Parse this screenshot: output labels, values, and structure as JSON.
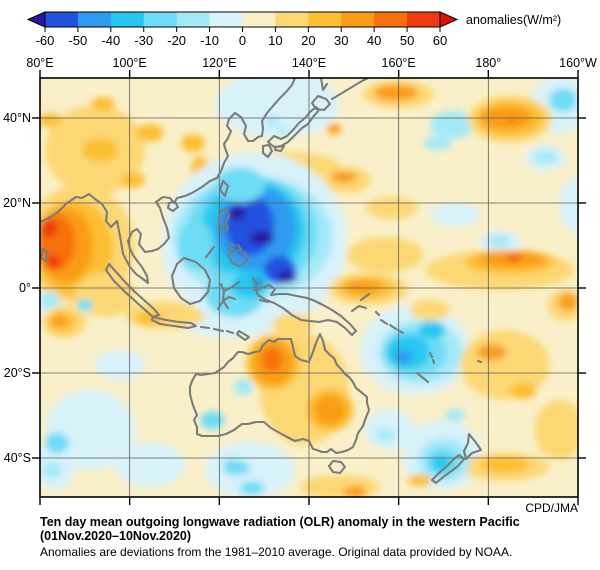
{
  "colorbar": {
    "labels": [
      "-60",
      "-50",
      "-40",
      "-30",
      "-20",
      "-10",
      "0",
      "10",
      "20",
      "30",
      "40",
      "50",
      "60"
    ],
    "unit": "anomalies(W/m²)",
    "under_color": "#2a16a0",
    "over_color": "#e01004",
    "segment_colors": [
      "#2351e0",
      "#2f9bf0",
      "#25c7f0",
      "#6edcf5",
      "#a4e9f8",
      "#d8f2fa",
      "#f9f0c9",
      "#fcd874",
      "#fcbe33",
      "#fb9c16",
      "#f8700c",
      "#ef3a10"
    ]
  },
  "axes": {
    "top_labels": [
      "80°E",
      "100°E",
      "120°E",
      "140°E",
      "160°E",
      "180°",
      "160°W"
    ],
    "left_labels": [
      "40°N",
      "20°N",
      "0°",
      "20°S",
      "40°S"
    ]
  },
  "caption": {
    "credit": "CPD/JMA",
    "title_line1": "Ten day mean outgoing longwave radiation (OLR) anomaly in the western Pacific",
    "title_line2": "(01Nov.2020–10Nov.2020)",
    "subtitle": "Anomalies are deviations from the 1981–2010 average. Original data provided by NOAA."
  },
  "chart_data": {
    "type": "heatmap",
    "title": "Ten day mean OLR anomaly in the western Pacific (01Nov.2020–10Nov.2020)",
    "units": "W/m²",
    "lon_range_deg_east": [
      80,
      200
    ],
    "lat_range": [
      -50,
      50
    ],
    "grid_step_deg": 20,
    "palette_thresholds": [
      -60,
      -50,
      -40,
      -30,
      -20,
      -10,
      0,
      10,
      20,
      30,
      40,
      50,
      60
    ],
    "palette_colors": [
      "#2a16a0",
      "#2351e0",
      "#2f9bf0",
      "#25c7f0",
      "#6edcf5",
      "#a4e9f8",
      "#d8f2fa",
      "#f9f0c9",
      "#fcd874",
      "#fcbe33",
      "#fb9c16",
      "#f8700c",
      "#ef3a10",
      "#e01004"
    ],
    "background_value": 5,
    "anomaly_regions": [
      [
        132.9,
        43.1,
        13.8,
        7.8,
        -5
      ],
      [
        196.0,
        43.1,
        6.7,
        6.6,
        -5
      ],
      [
        192.7,
        30.6,
        4.5,
        3.1,
        -5
      ],
      [
        199.3,
        19.5,
        3.6,
        6.1,
        -5
      ],
      [
        182.6,
        10.8,
        4.5,
        2.6,
        -5
      ],
      [
        112.3,
        7.8,
        4.9,
        8.9,
        -5
      ],
      [
        122.4,
        -6.4,
        12.3,
        5.2,
        -5
      ],
      [
        91.2,
        -33.4,
        10.0,
        9.4,
        -5
      ],
      [
        104.5,
        -41.6,
        7.8,
        5.2,
        -5
      ],
      [
        126.8,
        -42.8,
        10.0,
        6.6,
        -5
      ],
      [
        169.7,
        -39.3,
        8.9,
        8.2,
        -5
      ],
      [
        163.7,
        -14.6,
        12.3,
        10.6,
        -5
      ],
      [
        82.7,
        -4.0,
        3.1,
        2.8,
        -5
      ],
      [
        83.3,
        -41.6,
        4.5,
        5.9,
        -5
      ],
      [
        97.8,
        -18.1,
        5.6,
        3.5,
        -5
      ],
      [
        172.6,
        17.2,
        5.6,
        2.8,
        -5
      ],
      [
        158.1,
        -33.4,
        5.6,
        4.7,
        -5
      ],
      [
        171.9,
        38.4,
        4.9,
        3.3,
        -15
      ],
      [
        92.3,
        32.5,
        11.2,
        10.6,
        15
      ],
      [
        93.4,
        32.5,
        4.0,
        2.8,
        25
      ],
      [
        104.5,
        36.5,
        3.1,
        2.1,
        25
      ],
      [
        114.1,
        34.1,
        2.7,
        2.1,
        25
      ],
      [
        115.7,
        28.2,
        2.0,
        2.8,
        25
      ],
      [
        100.7,
        25.4,
        2.7,
        1.9,
        25
      ],
      [
        135.3,
        28.7,
        11.6,
        3.3,
        15
      ],
      [
        129.5,
        27.3,
        4.0,
        2.1,
        25
      ],
      [
        145.6,
        37.4,
        1.6,
        1.2,
        35
      ],
      [
        159.9,
        45.6,
        8.0,
        3.3,
        15
      ],
      [
        159.4,
        45.9,
        4.9,
        1.9,
        35
      ],
      [
        184.8,
        39.8,
        9.4,
        5.6,
        15
      ],
      [
        184.8,
        39.8,
        7.6,
        4.2,
        25
      ],
      [
        183.9,
        40.0,
        5.8,
        2.6,
        35
      ],
      [
        185.3,
        39.5,
        0.9,
        0.7,
        45
      ],
      [
        148.5,
        25.4,
        5.4,
        3.1,
        15
      ],
      [
        147.8,
        26.1,
        2.9,
        1.4,
        35
      ],
      [
        158.5,
        18.8,
        5.8,
        2.6,
        15
      ],
      [
        182.6,
        4.2,
        16.7,
        4.7,
        15
      ],
      [
        184.8,
        6.1,
        10.0,
        2.8,
        25
      ],
      [
        185.3,
        6.8,
        7.6,
        1.9,
        35
      ],
      [
        185.7,
        7.1,
        1.6,
        0.7,
        55
      ],
      [
        183.7,
        -18.1,
        10.0,
        8.2,
        15
      ],
      [
        180.8,
        -15.1,
        3.3,
        1.9,
        35
      ],
      [
        187.7,
        -24.2,
        2.9,
        1.9,
        25
      ],
      [
        195.9,
        -33.4,
        5.6,
        7.1,
        15
      ],
      [
        197.2,
        -4.0,
        4.0,
        3.8,
        15
      ],
      [
        197.7,
        -3.3,
        2.2,
        2.1,
        35
      ],
      [
        183.7,
        -42.1,
        10.0,
        3.3,
        15
      ],
      [
        183.7,
        -41.6,
        5.6,
        1.9,
        25
      ],
      [
        146.9,
        -46.8,
        8.9,
        2.8,
        15
      ],
      [
        150.3,
        -48.0,
        2.7,
        1.4,
        35
      ],
      [
        139.0,
        -24.0,
        10.0,
        13.0,
        15
      ],
      [
        132.0,
        -17.6,
        6.0,
        6.5,
        25
      ],
      [
        132.0,
        -17.6,
        4.5,
        5.2,
        35
      ],
      [
        131.8,
        -16.9,
        2.2,
        2.8,
        45
      ],
      [
        144.7,
        -28.7,
        5.2,
        5.0,
        25
      ],
      [
        144.7,
        -28.7,
        3.6,
        3.5,
        35
      ],
      [
        107.9,
        -6.4,
        8.9,
        3.3,
        15
      ],
      [
        104.5,
        -7.1,
        3.3,
        1.6,
        25
      ],
      [
        113.9,
        3.5,
        1.8,
        1.2,
        25
      ],
      [
        88.9,
        10.1,
        12.3,
        14.1,
        15
      ],
      [
        87.4,
        9.4,
        8.9,
        11.3,
        25
      ],
      [
        85.6,
        10.1,
        6.2,
        8.9,
        35
      ],
      [
        83.8,
        10.8,
        4.0,
        6.6,
        45
      ],
      [
        81.8,
        14.1,
        2.0,
        2.1,
        55
      ],
      [
        82.9,
        6.1,
        1.8,
        1.6,
        55
      ],
      [
        94.5,
        -1.6,
        6.7,
        5.2,
        15
      ],
      [
        85.4,
        -8.0,
        4.9,
        3.8,
        15
      ],
      [
        84.9,
        -8.0,
        3.1,
        2.4,
        25
      ],
      [
        84.2,
        -7.8,
        1.8,
        1.4,
        35
      ],
      [
        82.2,
        39.5,
        2.7,
        1.6,
        25
      ],
      [
        94.1,
        43.3,
        2.7,
        1.6,
        25
      ],
      [
        196.7,
        44.2,
        3.1,
        2.8,
        -25
      ],
      [
        131.8,
        39.1,
        1.8,
        1.2,
        -15
      ],
      [
        134.2,
        36.9,
        1.3,
        0.9,
        -15
      ],
      [
        82.2,
        -2.8,
        2.2,
        1.9,
        -15
      ],
      [
        83.8,
        -36.5,
        2.7,
        2.4,
        -25
      ],
      [
        82.7,
        -42.8,
        2.2,
        1.9,
        -15
      ],
      [
        123.0,
        -42.1,
        2.2,
        1.9,
        -25
      ],
      [
        127.3,
        -47.1,
        2.7,
        1.6,
        -25
      ],
      [
        125.3,
        -23.3,
        2.2,
        1.9,
        -15
      ],
      [
        118.4,
        -31.1,
        2.7,
        2.1,
        -25
      ],
      [
        124.6,
        -42.4,
        2.2,
        1.6,
        -25
      ],
      [
        90.0,
        -4.0,
        1.8,
        1.4,
        -25
      ],
      [
        168.6,
        34.1,
        3.1,
        1.6,
        -15
      ],
      [
        192.7,
        30.8,
        2.7,
        1.6,
        -15
      ],
      [
        182.4,
        11.1,
        2.7,
        1.4,
        -15
      ],
      [
        157.0,
        -34.6,
        2.2,
        1.4,
        -15
      ],
      [
        172.6,
        -29.9,
        2.2,
        1.4,
        -15
      ],
      [
        164.8,
        -15.1,
        9.4,
        7.5,
        -15
      ],
      [
        163.7,
        -15.1,
        7.1,
        5.6,
        -25
      ],
      [
        162.1,
        -15.1,
        4.9,
        4.0,
        -35
      ],
      [
        167.4,
        -9.9,
        3.1,
        2.1,
        -35
      ],
      [
        161.0,
        -16.2,
        2.0,
        1.6,
        -45
      ],
      [
        170.1,
        -40.5,
        5.8,
        5.2,
        -15
      ],
      [
        169.9,
        -40.9,
        3.8,
        3.3,
        -25
      ],
      [
        169.4,
        -41.2,
        2.0,
        1.9,
        -35
      ],
      [
        127.9,
        11.3,
        20.5,
        20.7,
        -5
      ],
      [
        127.5,
        12.0,
        17.8,
        14.6,
        -15
      ],
      [
        127.3,
        12.9,
        14.7,
        13.2,
        -25
      ],
      [
        127.5,
        13.6,
        11.6,
        11.8,
        -35
      ],
      [
        128.2,
        14.1,
        8.9,
        10.1,
        -45
      ],
      [
        126.8,
        14.8,
        5.4,
        7.1,
        -55
      ],
      [
        133.5,
        4.2,
        3.6,
        3.3,
        -55
      ],
      [
        114.6,
        10.1,
        4.0,
        5.9,
        -25
      ],
      [
        123.5,
        -1.6,
        6.7,
        5.2,
        -25
      ],
      [
        126.8,
        0.7,
        4.0,
        3.3,
        -35
      ],
      [
        124.6,
        24.2,
        5.6,
        4.2,
        -25
      ],
      [
        123.9,
        17.6,
        2.0,
        1.6,
        -65
      ],
      [
        129.5,
        11.8,
        2.7,
        1.6,
        -65
      ],
      [
        135.1,
        2.6,
        2.2,
        1.4,
        -65
      ],
      [
        128.6,
        1.4,
        0.9,
        0.7,
        -65
      ],
      [
        157.0,
        7.8,
        8.5,
        4.2,
        15
      ],
      [
        153.2,
        -0.2,
        8.9,
        3.8,
        15
      ],
      [
        152.7,
        0.0,
        6.2,
        2.6,
        25
      ],
      [
        152.1,
        0.2,
        4.0,
        1.6,
        35
      ],
      [
        136.2,
        -8.7,
        4.5,
        2.8,
        15
      ],
      [
        167.0,
        -5.2,
        4.5,
        2.4,
        15
      ],
      [
        164.8,
        -45.2,
        2.7,
        1.4,
        25
      ]
    ]
  }
}
